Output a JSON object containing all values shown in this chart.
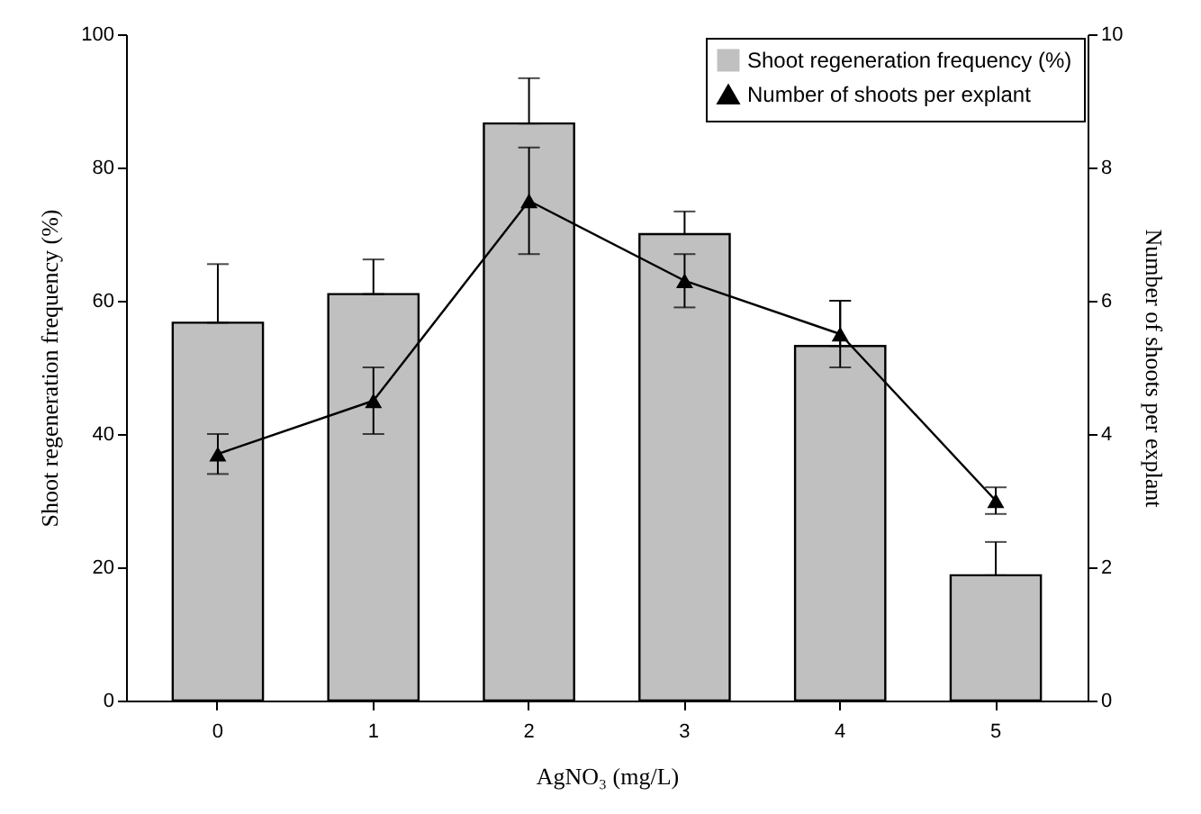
{
  "chart_data": {
    "type": "bar",
    "xlabel": "AgNO₃ (mg/L)",
    "ylabel": "Shoot regeneration frequency (%)",
    "y2label": "Number of shoots per explant",
    "categories": [
      "0",
      "1",
      "2",
      "3",
      "4",
      "5"
    ],
    "ylim": [
      0,
      100
    ],
    "yticks": [
      0,
      20,
      40,
      60,
      80,
      100
    ],
    "y2lim": [
      0,
      10
    ],
    "y2ticks": [
      0,
      2,
      4,
      6,
      8,
      10
    ],
    "legend": "top right",
    "series": [
      {
        "name": "Shoot regeneration frequency (%)",
        "axis": "y",
        "color": "#c0c0c0",
        "values": [
          56.7,
          61.0,
          86.6,
          70.0,
          53.2,
          18.8
        ],
        "errors": [
          [
            56.7,
            65.5
          ],
          [
            61.0,
            66.2
          ],
          [
            86.6,
            93.4
          ],
          [
            70.0,
            73.4
          ],
          [
            53.2,
            60.0
          ],
          [
            18.8,
            23.8
          ]
        ]
      },
      {
        "name": "Number of shoots per explant",
        "type": "line",
        "axis": "y2",
        "color": "#000000",
        "marker": "triangle",
        "values": [
          3.7,
          4.5,
          7.5,
          6.3,
          5.5,
          3.0
        ],
        "errors": [
          0.3,
          0.5,
          0.8,
          0.4,
          0.5,
          0.2
        ]
      }
    ]
  }
}
